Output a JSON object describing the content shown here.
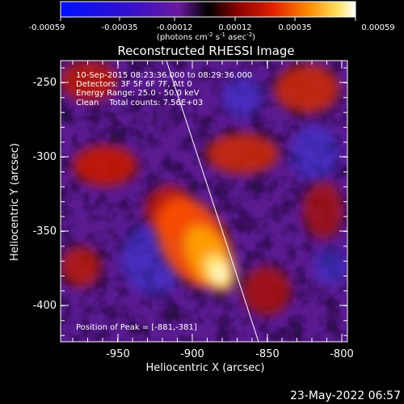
{
  "colorbar": {
    "tick_labels": [
      "-0.00059",
      "-0.00035",
      "-0.00012",
      "0.00012",
      "0.00035",
      "0.00059"
    ],
    "units_prefix": "(photons cm",
    "units_exp1": "-2",
    "units_mid": " s",
    "units_exp2": "-1",
    "units_mid2": " asec",
    "units_exp3": "-2",
    "units_suffix": ")"
  },
  "image": {
    "title": "Reconstructed RHESSI Image",
    "info_lines": [
      "10-Sep-2015 08:23:36.000 to 08:29:36.000",
      "Detectors: 3F 5F 6F 7F, Att 0",
      "Energy Range: 25.0 - 50.0 keV",
      "Clean    Total counts: 7.56E+03"
    ],
    "peak_text": "Position of Peak = [-881,-381]"
  },
  "axes": {
    "xlabel": "Heliocentric X (arcsec)",
    "ylabel": "Heliocentric Y (arcsec)",
    "x_ticks": [
      "-950",
      "-900",
      "-850",
      "-800"
    ],
    "y_ticks": [
      "-250",
      "-300",
      "-350",
      "-400"
    ]
  },
  "footer": {
    "timestamp": "23-May-2022 06:57"
  }
}
